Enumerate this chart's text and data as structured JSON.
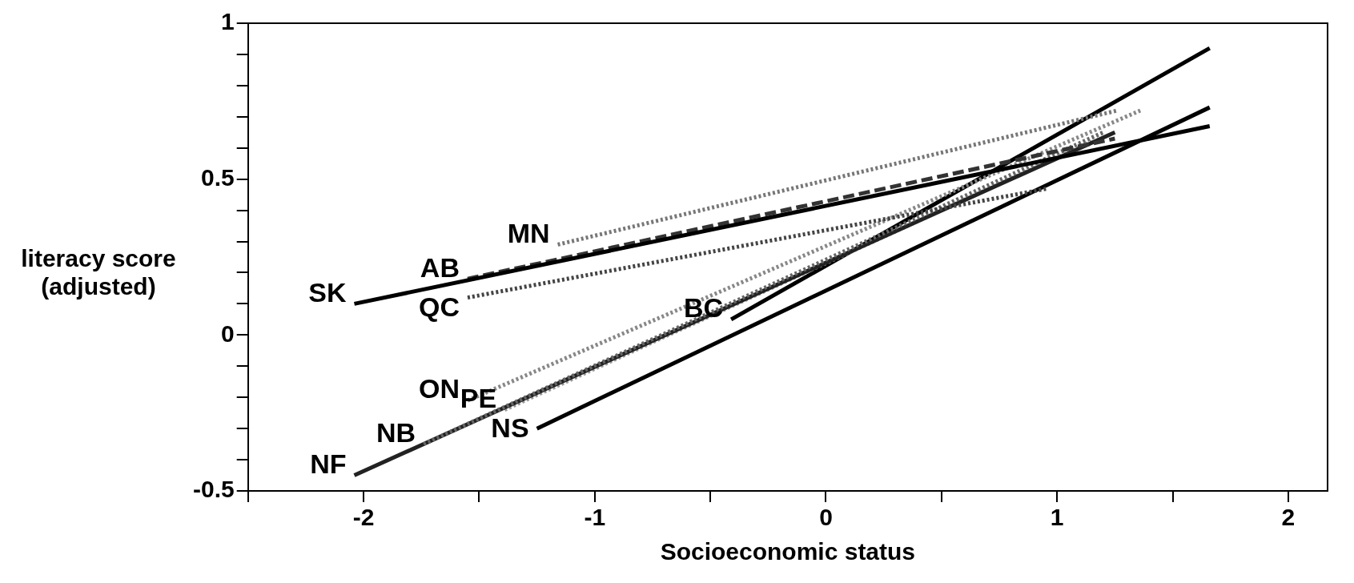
{
  "chart_data": {
    "type": "line",
    "xlabel": "Socioeconomic status",
    "ylabel": "literacy score (adjusted)",
    "xlim": [
      -2.5,
      2.17
    ],
    "ylim": [
      -0.5,
      1
    ],
    "xticks": [
      {
        "value": -2.5,
        "label": null
      },
      -2,
      {
        "value": -1.5,
        "label": null
      },
      -1,
      {
        "value": -0.5,
        "label": null
      },
      0,
      {
        "value": 0.5,
        "label": null
      },
      1,
      {
        "value": 1.5,
        "label": null
      },
      2
    ],
    "yticks": [
      -0.5,
      {
        "value": -0.4,
        "label": null
      },
      {
        "value": -0.3,
        "label": null
      },
      {
        "value": -0.2,
        "label": null
      },
      {
        "value": -0.1,
        "label": null
      },
      0,
      {
        "value": 0.1,
        "label": null
      },
      {
        "value": 0.2,
        "label": null
      },
      {
        "value": 0.3,
        "label": null
      },
      {
        "value": 0.4,
        "label": null
      },
      0.5,
      {
        "value": 0.6,
        "label": null
      },
      {
        "value": 0.7,
        "label": null
      },
      {
        "value": 0.8,
        "label": null
      },
      {
        "value": 0.9,
        "label": null
      },
      1
    ],
    "grid": false,
    "legend": false,
    "marker": "none",
    "series": [
      {
        "name": "SK",
        "color": "#000000",
        "line_style": "solid",
        "x": [
          -2.04,
          1.66
        ],
        "values": [
          0.1,
          0.67
        ]
      },
      {
        "name": "AB",
        "color": "#333333",
        "line_style": "dashed",
        "x": [
          -1.55,
          1.25
        ],
        "values": [
          0.18,
          0.63
        ]
      },
      {
        "name": "MN",
        "color": "#777777",
        "line_style": "dotted",
        "x": [
          -1.16,
          1.26
        ],
        "values": [
          0.29,
          0.72
        ]
      },
      {
        "name": "QC",
        "color": "#444444",
        "line_style": "dotted",
        "x": [
          -1.55,
          0.96
        ],
        "values": [
          0.12,
          0.47
        ]
      },
      {
        "name": "ON",
        "color": "#888888",
        "line_style": "dotted",
        "x": [
          -1.55,
          1.36
        ],
        "values": [
          -0.21,
          0.72
        ]
      },
      {
        "name": "NB",
        "color": "#666666",
        "line_style": "dotted",
        "x": [
          -1.74,
          1.2
        ],
        "values": [
          -0.35,
          0.65
        ]
      },
      {
        "name": "NF",
        "color": "#222222",
        "line_style": "solid",
        "x": [
          -2.04,
          1.25
        ],
        "values": [
          -0.45,
          0.65
        ]
      },
      {
        "name": "PE",
        "color": "#999999",
        "line_style": "dotted",
        "x": [
          -1.39,
          1.15
        ],
        "values": [
          -0.24,
          0.62
        ]
      },
      {
        "name": "NS",
        "color": "#000000",
        "line_style": "solid",
        "x": [
          -1.25,
          1.66
        ],
        "values": [
          -0.3,
          0.73
        ]
      },
      {
        "name": "BC",
        "color": "#000000",
        "line_style": "solid",
        "x": [
          -0.41,
          1.66
        ],
        "values": [
          0.05,
          0.92
        ]
      }
    ]
  }
}
